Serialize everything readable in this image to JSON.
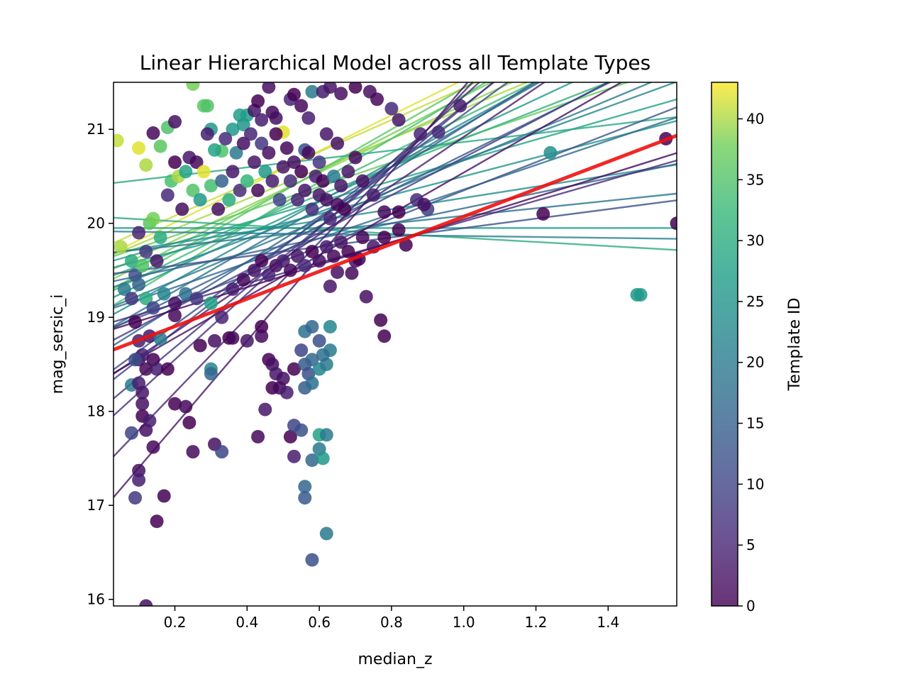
{
  "chart_data": {
    "type": "scatter",
    "title": "Linear Hierarchical Model across all Template Types",
    "xlabel": "median_z",
    "ylabel": "mag_sersic_i",
    "xlim": [
      0.03,
      1.59
    ],
    "ylim": [
      15.93,
      21.5
    ],
    "xticks": [
      0.2,
      0.4,
      0.6,
      0.8,
      1.0,
      1.2,
      1.4
    ],
    "yticks": [
      16,
      17,
      18,
      19,
      20,
      21
    ],
    "colorbar": {
      "label": "Template ID",
      "range": [
        0,
        43
      ],
      "ticks": [
        0,
        5,
        10,
        15,
        20,
        25,
        30,
        35,
        40
      ],
      "colormap": "viridis"
    },
    "grid": false,
    "population_fit": {
      "color": "#ee1111",
      "intercept": 19.05,
      "slope": 1.46
    },
    "template_fits": [
      {
        "t": 42,
        "intercept": 20.2,
        "slope": 1.9
      },
      {
        "t": 41,
        "intercept": 20.25,
        "slope": 1.7
      },
      {
        "t": 40,
        "intercept": 20.1,
        "slope": 1.6
      },
      {
        "t": 39,
        "intercept": 20.0,
        "slope": 1.8
      },
      {
        "t": 38,
        "intercept": 19.95,
        "slope": 2.0
      },
      {
        "t": 37,
        "intercept": 20.0,
        "slope": 1.3
      },
      {
        "t": 36,
        "intercept": 19.9,
        "slope": 2.2
      },
      {
        "t": 34,
        "intercept": 19.75,
        "slope": 2.3
      },
      {
        "t": 33,
        "intercept": 19.8,
        "slope": 1.9
      },
      {
        "t": 31,
        "intercept": 19.85,
        "slope": 1.5
      },
      {
        "t": 30,
        "intercept": 20.0,
        "slope": -0.22
      },
      {
        "t": 29,
        "intercept": 20.55,
        "slope": 0.45
      },
      {
        "t": 28,
        "intercept": 19.9,
        "slope": 1.1
      },
      {
        "t": 27,
        "intercept": 19.95,
        "slope": 0.0
      },
      {
        "t": 26,
        "intercept": 19.7,
        "slope": 1.8
      },
      {
        "t": 25,
        "intercept": 19.8,
        "slope": 1.0
      },
      {
        "t": 24,
        "intercept": 19.85,
        "slope": 0.6
      },
      {
        "t": 23,
        "intercept": 19.6,
        "slope": 2.1
      },
      {
        "t": 22,
        "intercept": 19.7,
        "slope": 1.4
      },
      {
        "t": 21,
        "intercept": 19.9,
        "slope": -0.05
      },
      {
        "t": 20,
        "intercept": 19.55,
        "slope": 1.6
      },
      {
        "t": 19,
        "intercept": 19.8,
        "slope": 0.4
      },
      {
        "t": 18,
        "intercept": 19.5,
        "slope": 2.2
      },
      {
        "t": 17,
        "intercept": 19.45,
        "slope": 1.3
      },
      {
        "t": 16,
        "intercept": 19.6,
        "slope": 0.8
      },
      {
        "t": 15,
        "intercept": 19.35,
        "slope": 2.4
      },
      {
        "t": 14,
        "intercept": 19.4,
        "slope": 1.9
      },
      {
        "t": 13,
        "intercept": 19.3,
        "slope": 1.5
      },
      {
        "t": 12,
        "intercept": 19.6,
        "slope": 0.5
      },
      {
        "t": 11,
        "intercept": 19.2,
        "slope": 2.8
      },
      {
        "t": 10,
        "intercept": 19.15,
        "slope": 3.0
      },
      {
        "t": 9,
        "intercept": 19.3,
        "slope": 2.0
      },
      {
        "t": 8,
        "intercept": 19.0,
        "slope": 3.2
      },
      {
        "t": 7,
        "intercept": 18.9,
        "slope": 3.5
      },
      {
        "t": 6,
        "intercept": 19.25,
        "slope": 1.1
      },
      {
        "t": 5,
        "intercept": 18.6,
        "slope": 4.0
      },
      {
        "t": 4,
        "intercept": 19.1,
        "slope": 2.6
      },
      {
        "t": 3,
        "intercept": 18.3,
        "slope": 4.5
      },
      {
        "t": 2,
        "intercept": 19.0,
        "slope": 2.2
      },
      {
        "t": 1,
        "intercept": 19.2,
        "slope": 1.2
      }
    ],
    "points": [
      [
        0.04,
        20.88,
        41
      ],
      [
        0.1,
        20.8,
        42
      ],
      [
        0.12,
        20.62,
        40
      ],
      [
        0.14,
        20.96,
        1
      ],
      [
        0.16,
        20.82,
        36
      ],
      [
        0.18,
        21.02,
        35
      ],
      [
        0.2,
        21.08,
        2
      ],
      [
        0.25,
        21.48,
        38
      ],
      [
        0.28,
        21.25,
        36
      ],
      [
        0.29,
        21.25,
        35
      ],
      [
        0.3,
        21.0,
        26
      ],
      [
        0.33,
        20.77,
        35
      ],
      [
        0.36,
        21.0,
        26
      ],
      [
        0.38,
        21.15,
        27
      ],
      [
        0.39,
        21.05,
        25
      ],
      [
        0.4,
        21.15,
        27
      ],
      [
        0.42,
        21.2,
        3
      ],
      [
        0.43,
        21.3,
        0
      ],
      [
        0.44,
        21.1,
        4
      ],
      [
        0.46,
        21.45,
        2
      ],
      [
        0.47,
        21.18,
        1
      ],
      [
        0.48,
        21.12,
        2
      ],
      [
        0.5,
        20.97,
        42
      ],
      [
        0.52,
        21.32,
        5
      ],
      [
        0.53,
        21.37,
        0
      ],
      [
        0.55,
        21.25,
        1
      ],
      [
        0.57,
        21.12,
        4
      ],
      [
        0.58,
        21.4,
        20
      ],
      [
        0.61,
        21.4,
        4
      ],
      [
        0.63,
        21.45,
        3
      ],
      [
        0.66,
        21.38,
        2
      ],
      [
        0.7,
        21.45,
        0
      ],
      [
        0.74,
        21.4,
        2
      ],
      [
        0.76,
        21.32,
        1
      ],
      [
        0.8,
        21.22,
        6
      ],
      [
        0.82,
        21.1,
        3
      ],
      [
        0.88,
        20.95,
        5
      ],
      [
        0.93,
        20.97,
        6
      ],
      [
        0.99,
        21.25,
        4
      ],
      [
        0.56,
        20.78,
        12
      ],
      [
        0.6,
        20.65,
        8
      ],
      [
        0.68,
        20.55,
        3
      ],
      [
        0.72,
        20.45,
        2
      ],
      [
        0.75,
        20.3,
        4
      ],
      [
        0.78,
        20.12,
        1
      ],
      [
        0.82,
        20.12,
        0
      ],
      [
        0.87,
        20.25,
        6
      ],
      [
        0.9,
        20.15,
        9
      ],
      [
        0.7,
        20.7,
        1
      ],
      [
        0.65,
        20.85,
        2
      ],
      [
        0.62,
        20.95,
        3
      ],
      [
        0.05,
        19.75,
        40
      ],
      [
        0.08,
        19.6,
        30
      ],
      [
        0.09,
        19.45,
        12
      ],
      [
        0.1,
        19.9,
        5
      ],
      [
        0.11,
        19.55,
        35
      ],
      [
        0.12,
        19.7,
        8
      ],
      [
        0.13,
        20.0,
        36
      ],
      [
        0.14,
        20.05,
        38
      ],
      [
        0.15,
        19.6,
        3
      ],
      [
        0.16,
        19.85,
        30
      ],
      [
        0.18,
        20.3,
        6
      ],
      [
        0.19,
        20.45,
        34
      ],
      [
        0.2,
        20.65,
        0
      ],
      [
        0.21,
        20.5,
        40
      ],
      [
        0.22,
        20.15,
        2
      ],
      [
        0.23,
        20.55,
        28
      ],
      [
        0.24,
        20.7,
        3
      ],
      [
        0.25,
        20.35,
        35
      ],
      [
        0.26,
        20.65,
        1
      ],
      [
        0.27,
        20.25,
        26
      ],
      [
        0.28,
        20.55,
        42
      ],
      [
        0.29,
        20.95,
        4
      ],
      [
        0.3,
        20.4,
        34
      ],
      [
        0.31,
        20.78,
        28
      ],
      [
        0.32,
        20.15,
        2
      ],
      [
        0.33,
        20.45,
        15
      ],
      [
        0.34,
        20.9,
        6
      ],
      [
        0.35,
        20.25,
        30
      ],
      [
        0.36,
        20.55,
        3
      ],
      [
        0.37,
        20.75,
        20
      ],
      [
        0.38,
        20.35,
        6
      ],
      [
        0.39,
        20.85,
        2
      ],
      [
        0.4,
        20.45,
        32
      ],
      [
        0.41,
        20.95,
        5
      ],
      [
        0.42,
        20.65,
        3
      ],
      [
        0.43,
        20.35,
        1
      ],
      [
        0.44,
        20.85,
        8
      ],
      [
        0.45,
        20.55,
        26
      ],
      [
        0.46,
        20.75,
        2
      ],
      [
        0.47,
        20.45,
        4
      ],
      [
        0.48,
        20.95,
        0
      ],
      [
        0.49,
        20.25,
        10
      ],
      [
        0.5,
        20.6,
        3
      ],
      [
        0.51,
        20.8,
        1
      ],
      [
        0.52,
        20.45,
        6
      ],
      [
        0.53,
        20.65,
        2
      ],
      [
        0.54,
        20.25,
        5
      ],
      [
        0.55,
        20.55,
        0
      ],
      [
        0.56,
        20.35,
        3
      ],
      [
        0.57,
        20.75,
        1
      ],
      [
        0.58,
        20.15,
        7
      ],
      [
        0.59,
        20.5,
        4
      ],
      [
        0.6,
        20.3,
        3
      ],
      [
        0.61,
        20.45,
        0
      ],
      [
        0.62,
        20.25,
        2
      ],
      [
        0.63,
        20.05,
        5
      ],
      [
        0.64,
        20.5,
        20
      ],
      [
        0.65,
        20.2,
        1
      ],
      [
        0.66,
        20.4,
        3
      ],
      [
        0.67,
        20.15,
        0
      ],
      [
        0.06,
        19.3,
        20
      ],
      [
        0.08,
        19.2,
        8
      ],
      [
        0.1,
        19.35,
        15
      ],
      [
        0.12,
        19.2,
        30
      ],
      [
        0.14,
        19.1,
        10
      ],
      [
        0.17,
        19.25,
        22
      ],
      [
        0.2,
        19.15,
        2
      ],
      [
        0.23,
        19.25,
        18
      ],
      [
        0.26,
        19.2,
        8
      ],
      [
        0.3,
        19.15,
        28
      ],
      [
        0.33,
        19.0,
        5
      ],
      [
        0.36,
        19.3,
        4
      ],
      [
        0.39,
        19.4,
        1
      ],
      [
        0.42,
        19.5,
        3
      ],
      [
        0.44,
        19.6,
        0
      ],
      [
        0.46,
        19.45,
        5
      ],
      [
        0.48,
        19.55,
        2
      ],
      [
        0.5,
        19.6,
        4
      ],
      [
        0.52,
        19.5,
        1
      ],
      [
        0.54,
        19.65,
        3
      ],
      [
        0.56,
        19.55,
        6
      ],
      [
        0.58,
        19.7,
        0
      ],
      [
        0.6,
        19.6,
        2
      ],
      [
        0.62,
        19.75,
        4
      ],
      [
        0.64,
        19.65,
        1
      ],
      [
        0.66,
        19.8,
        3
      ],
      [
        0.68,
        19.7,
        0
      ],
      [
        0.7,
        19.6,
        2
      ],
      [
        0.72,
        19.85,
        1
      ],
      [
        0.75,
        19.75,
        3
      ],
      [
        0.78,
        19.85,
        0
      ],
      [
        0.84,
        19.77,
        0
      ],
      [
        0.65,
        19.48,
        2
      ],
      [
        0.69,
        19.47,
        1
      ],
      [
        0.71,
        19.62,
        0
      ],
      [
        0.63,
        19.33,
        3
      ],
      [
        0.09,
        18.95,
        0
      ],
      [
        0.1,
        18.75,
        4
      ],
      [
        0.1,
        18.55,
        2
      ],
      [
        0.11,
        18.6,
        5
      ],
      [
        0.12,
        18.45,
        1
      ],
      [
        0.13,
        18.8,
        3
      ],
      [
        0.14,
        18.55,
        0
      ],
      [
        0.15,
        18.45,
        4
      ],
      [
        0.16,
        18.77,
        20
      ],
      [
        0.18,
        18.45,
        0
      ],
      [
        0.2,
        19.02,
        1
      ],
      [
        0.27,
        18.7,
        0
      ],
      [
        0.3,
        18.45,
        22
      ],
      [
        0.3,
        18.4,
        16
      ],
      [
        0.31,
        18.75,
        2
      ],
      [
        0.35,
        18.78,
        0
      ],
      [
        0.36,
        18.78,
        1
      ],
      [
        0.4,
        18.75,
        3
      ],
      [
        0.44,
        18.9,
        0
      ],
      [
        0.44,
        18.8,
        1
      ],
      [
        0.46,
        18.55,
        0
      ],
      [
        0.47,
        18.5,
        2
      ],
      [
        0.48,
        18.4,
        3
      ],
      [
        0.47,
        18.25,
        0
      ],
      [
        0.49,
        18.25,
        1
      ],
      [
        0.5,
        18.35,
        2
      ],
      [
        0.51,
        18.2,
        4
      ],
      [
        0.53,
        18.45,
        0
      ],
      [
        0.55,
        18.65,
        10
      ],
      [
        0.56,
        18.5,
        14
      ],
      [
        0.57,
        18.4,
        12
      ],
      [
        0.58,
        18.55,
        16
      ],
      [
        0.6,
        18.45,
        22
      ],
      [
        0.62,
        18.5,
        20
      ],
      [
        0.63,
        18.65,
        20
      ],
      [
        0.61,
        18.6,
        18
      ],
      [
        0.56,
        18.85,
        18
      ],
      [
        0.58,
        18.9,
        16
      ],
      [
        0.6,
        18.75,
        12
      ],
      [
        0.63,
        18.9,
        22
      ],
      [
        0.56,
        18.25,
        14
      ],
      [
        0.58,
        18.3,
        18
      ],
      [
        0.08,
        18.28,
        20
      ],
      [
        0.09,
        18.55,
        12
      ],
      [
        0.1,
        18.3,
        4
      ],
      [
        0.11,
        18.2,
        3
      ],
      [
        0.11,
        18.08,
        2
      ],
      [
        0.11,
        17.95,
        0
      ],
      [
        0.12,
        17.8,
        2
      ],
      [
        0.13,
        17.9,
        4
      ],
      [
        0.14,
        17.62,
        1
      ],
      [
        0.17,
        17.1,
        0
      ],
      [
        0.2,
        18.08,
        0
      ],
      [
        0.23,
        18.05,
        1
      ],
      [
        0.24,
        17.88,
        0
      ],
      [
        0.25,
        17.57,
        1
      ],
      [
        0.31,
        17.65,
        2
      ],
      [
        0.33,
        17.57,
        10
      ],
      [
        0.43,
        17.73,
        1
      ],
      [
        0.45,
        18.02,
        3
      ],
      [
        0.52,
        17.73,
        0
      ],
      [
        0.53,
        17.52,
        4
      ],
      [
        0.53,
        17.85,
        10
      ],
      [
        0.55,
        17.8,
        12
      ],
      [
        0.56,
        17.2,
        16
      ],
      [
        0.56,
        17.08,
        14
      ],
      [
        0.58,
        17.48,
        16
      ],
      [
        0.6,
        17.75,
        28
      ],
      [
        0.6,
        17.6,
        20
      ],
      [
        0.61,
        17.5,
        26
      ],
      [
        0.62,
        17.75,
        20
      ],
      [
        0.08,
        17.77,
        10
      ],
      [
        0.09,
        17.08,
        8
      ],
      [
        0.1,
        17.37,
        2
      ],
      [
        0.1,
        17.27,
        4
      ],
      [
        0.15,
        16.83,
        0
      ],
      [
        0.12,
        15.93,
        2
      ],
      [
        0.58,
        16.42,
        12
      ],
      [
        0.62,
        16.7,
        20
      ],
      [
        1.24,
        20.75,
        24
      ],
      [
        1.22,
        20.1,
        0
      ],
      [
        1.56,
        20.9,
        0
      ],
      [
        1.59,
        20.0,
        0
      ],
      [
        1.48,
        19.24,
        26
      ],
      [
        1.49,
        19.24,
        26
      ],
      [
        0.73,
        19.22,
        2
      ],
      [
        0.77,
        18.97,
        0
      ],
      [
        0.78,
        18.8,
        0
      ],
      [
        0.82,
        19.93,
        0
      ],
      [
        0.89,
        20.2,
        2
      ]
    ]
  }
}
